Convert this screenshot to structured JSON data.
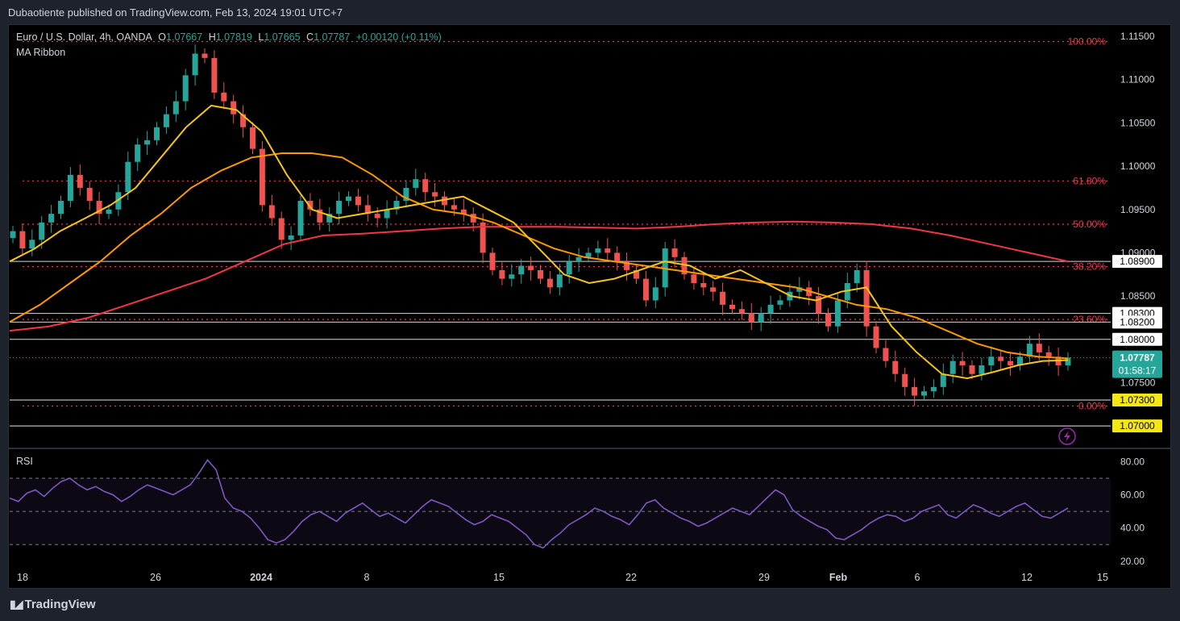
{
  "header": {
    "publisher": "Dubaotiente published on TradingView.com, Feb 13, 2024 19:01 UTC+7"
  },
  "legend": {
    "symbol": "Euro / U.S. Dollar, 4h, OANDA",
    "open_label": "O",
    "open": "1.07667",
    "high_label": "H",
    "high": "1.07819",
    "low_label": "L",
    "low": "1.07665",
    "close_label": "C",
    "close": "1.07787",
    "change": "+0.00120 (+0.11%)",
    "indicator": "MA Ribbon",
    "rsi_label": "RSI"
  },
  "colors": {
    "background": "#000000",
    "up": "#26a69a",
    "down": "#ef5350",
    "ma_fast": "#f5c518",
    "ma_mid": "#ff9800",
    "ma_slow": "#f23645",
    "fib": "#f23645",
    "rsi": "#7e57c2"
  },
  "chart_data": {
    "type": "candlestick",
    "symbol": "EUR/USD",
    "timeframe": "4h",
    "y_ticks": [
      "1.11500",
      "1.11000",
      "1.10500",
      "1.10000",
      "1.09500",
      "1.09000",
      "1.08500",
      "1.07500"
    ],
    "ylim": [
      1.0675,
      1.1164
    ],
    "x_ticks": [
      "18",
      "26",
      "2024",
      "8",
      "15",
      "22",
      "29",
      "Feb",
      "6",
      "12",
      "15"
    ],
    "fib_levels": [
      {
        "label": "100.00%",
        "value": 1.1144
      },
      {
        "label": "61.80%",
        "value": 1.0983
      },
      {
        "label": "50.00%",
        "value": 1.0933
      },
      {
        "label": "38.20%",
        "value": 1.0884
      },
      {
        "label": "23.60%",
        "value": 1.0823
      },
      {
        "label": "0.00%",
        "value": 1.0723
      }
    ],
    "horizontal_lines": [
      {
        "label": "1.08900",
        "value": 1.089,
        "style": "white"
      },
      {
        "label": "1.08300",
        "value": 1.083,
        "style": "white"
      },
      {
        "label": "1.08200",
        "value": 1.082,
        "style": "white"
      },
      {
        "label": "1.08000",
        "value": 1.08,
        "style": "white"
      },
      {
        "label": "1.07300",
        "value": 1.073,
        "style": "yellow"
      },
      {
        "label": "1.07000",
        "value": 1.07,
        "style": "yellow"
      }
    ],
    "last_price": {
      "label": "1.07787",
      "value": 1.07787,
      "countdown": "01:58:17"
    },
    "candles_close": [
      1.0925,
      1.0905,
      1.0915,
      1.0935,
      1.0945,
      1.096,
      1.099,
      1.0975,
      1.096,
      1.0945,
      1.095,
      1.097,
      1.1005,
      1.1025,
      1.103,
      1.1045,
      1.106,
      1.1075,
      1.1105,
      1.113,
      1.1125,
      1.1085,
      1.1075,
      1.106,
      1.1045,
      1.102,
      1.0955,
      1.094,
      1.0915,
      1.092,
      1.096,
      1.095,
      1.0935,
      1.0945,
      1.096,
      1.0965,
      1.0955,
      1.0945,
      1.094,
      1.095,
      1.096,
      1.0975,
      1.0985,
      1.097,
      1.0965,
      1.0955,
      1.095,
      1.0945,
      1.0935,
      1.09,
      1.088,
      1.087,
      1.0875,
      1.0885,
      1.088,
      1.087,
      1.086,
      1.0875,
      1.089,
      1.0895,
      1.09,
      1.0905,
      1.09,
      1.089,
      1.088,
      1.087,
      1.0845,
      1.086,
      1.0905,
      1.0895,
      1.0875,
      1.0865,
      1.086,
      1.0855,
      1.084,
      1.0835,
      1.083,
      1.082,
      1.083,
      1.084,
      1.0845,
      1.0855,
      1.086,
      1.085,
      1.083,
      1.0815,
      1.0845,
      1.0865,
      1.088,
      1.0815,
      1.079,
      1.0775,
      1.076,
      1.0745,
      1.0735,
      1.074,
      1.0745,
      1.076,
      1.0775,
      1.077,
      1.076,
      1.077,
      1.078,
      1.0775,
      1.077,
      1.078,
      1.0795,
      1.0785,
      1.078,
      1.077,
      1.0779
    ],
    "ma_fast": [
      1.089,
      1.0905,
      1.0925,
      1.094,
      1.0955,
      1.0975,
      1.101,
      1.1045,
      1.107,
      1.1065,
      1.104,
      1.099,
      1.095,
      1.094,
      1.0945,
      1.095,
      1.0955,
      1.096,
      1.0965,
      1.095,
      1.0935,
      1.0905,
      1.0875,
      1.0865,
      1.087,
      1.088,
      1.089,
      1.0885,
      1.087,
      1.088,
      1.0865,
      1.085,
      1.0845,
      1.0855,
      1.086,
      1.0815,
      1.0785,
      1.076,
      1.0755,
      1.0762,
      1.077,
      1.0775,
      1.0776
    ],
    "ma_mid": [
      1.082,
      1.084,
      1.0865,
      1.089,
      1.092,
      1.0945,
      1.0975,
      1.0995,
      1.101,
      1.1015,
      1.1015,
      1.101,
      1.099,
      1.0965,
      1.095,
      1.0945,
      1.0935,
      1.092,
      1.0905,
      1.0895,
      1.089,
      1.0885,
      1.088,
      1.0875,
      1.087,
      1.0865,
      1.086,
      1.085,
      1.084,
      1.0835,
      1.0825,
      1.081,
      1.0795,
      1.0785,
      1.078,
      1.0778
    ],
    "ma_slow": [
      1.081,
      1.0815,
      1.0825,
      1.084,
      1.0855,
      1.087,
      1.089,
      1.091,
      1.092,
      1.0922,
      1.0925,
      1.0928,
      1.093,
      1.093,
      1.093,
      1.0929,
      1.0928,
      1.093,
      1.0933,
      1.0935,
      1.0936,
      1.0935,
      1.0933,
      1.0928,
      1.092,
      1.091,
      1.09,
      1.089
    ],
    "rsi": {
      "ticks": [
        "80.00",
        "60.00",
        "40.00",
        "20.00"
      ],
      "ylim": [
        18,
        86
      ],
      "band": [
        30,
        70
      ],
      "midline": 50,
      "values": [
        58,
        56,
        61,
        63,
        59,
        64,
        68,
        70,
        66,
        63,
        65,
        62,
        60,
        56,
        59,
        63,
        66,
        64,
        62,
        60,
        63,
        66,
        73,
        81,
        75,
        58,
        52,
        50,
        46,
        40,
        33,
        31,
        33,
        38,
        44,
        48,
        50,
        47,
        44,
        49,
        52,
        55,
        51,
        47,
        49,
        46,
        43,
        48,
        53,
        57,
        55,
        53,
        49,
        45,
        42,
        44,
        48,
        46,
        44,
        40,
        36,
        30,
        28,
        33,
        37,
        42,
        45,
        48,
        52,
        50,
        47,
        45,
        42,
        48,
        55,
        57,
        52,
        49,
        46,
        44,
        41,
        43,
        46,
        49,
        52,
        50,
        48,
        53,
        58,
        63,
        60,
        51,
        47,
        44,
        41,
        39,
        34,
        33,
        36,
        39,
        43,
        46,
        48,
        47,
        44,
        46,
        50,
        52,
        54,
        48,
        46,
        50,
        54,
        52,
        49,
        47,
        50,
        53,
        55,
        51,
        47,
        46,
        49,
        52
      ]
    }
  }
}
